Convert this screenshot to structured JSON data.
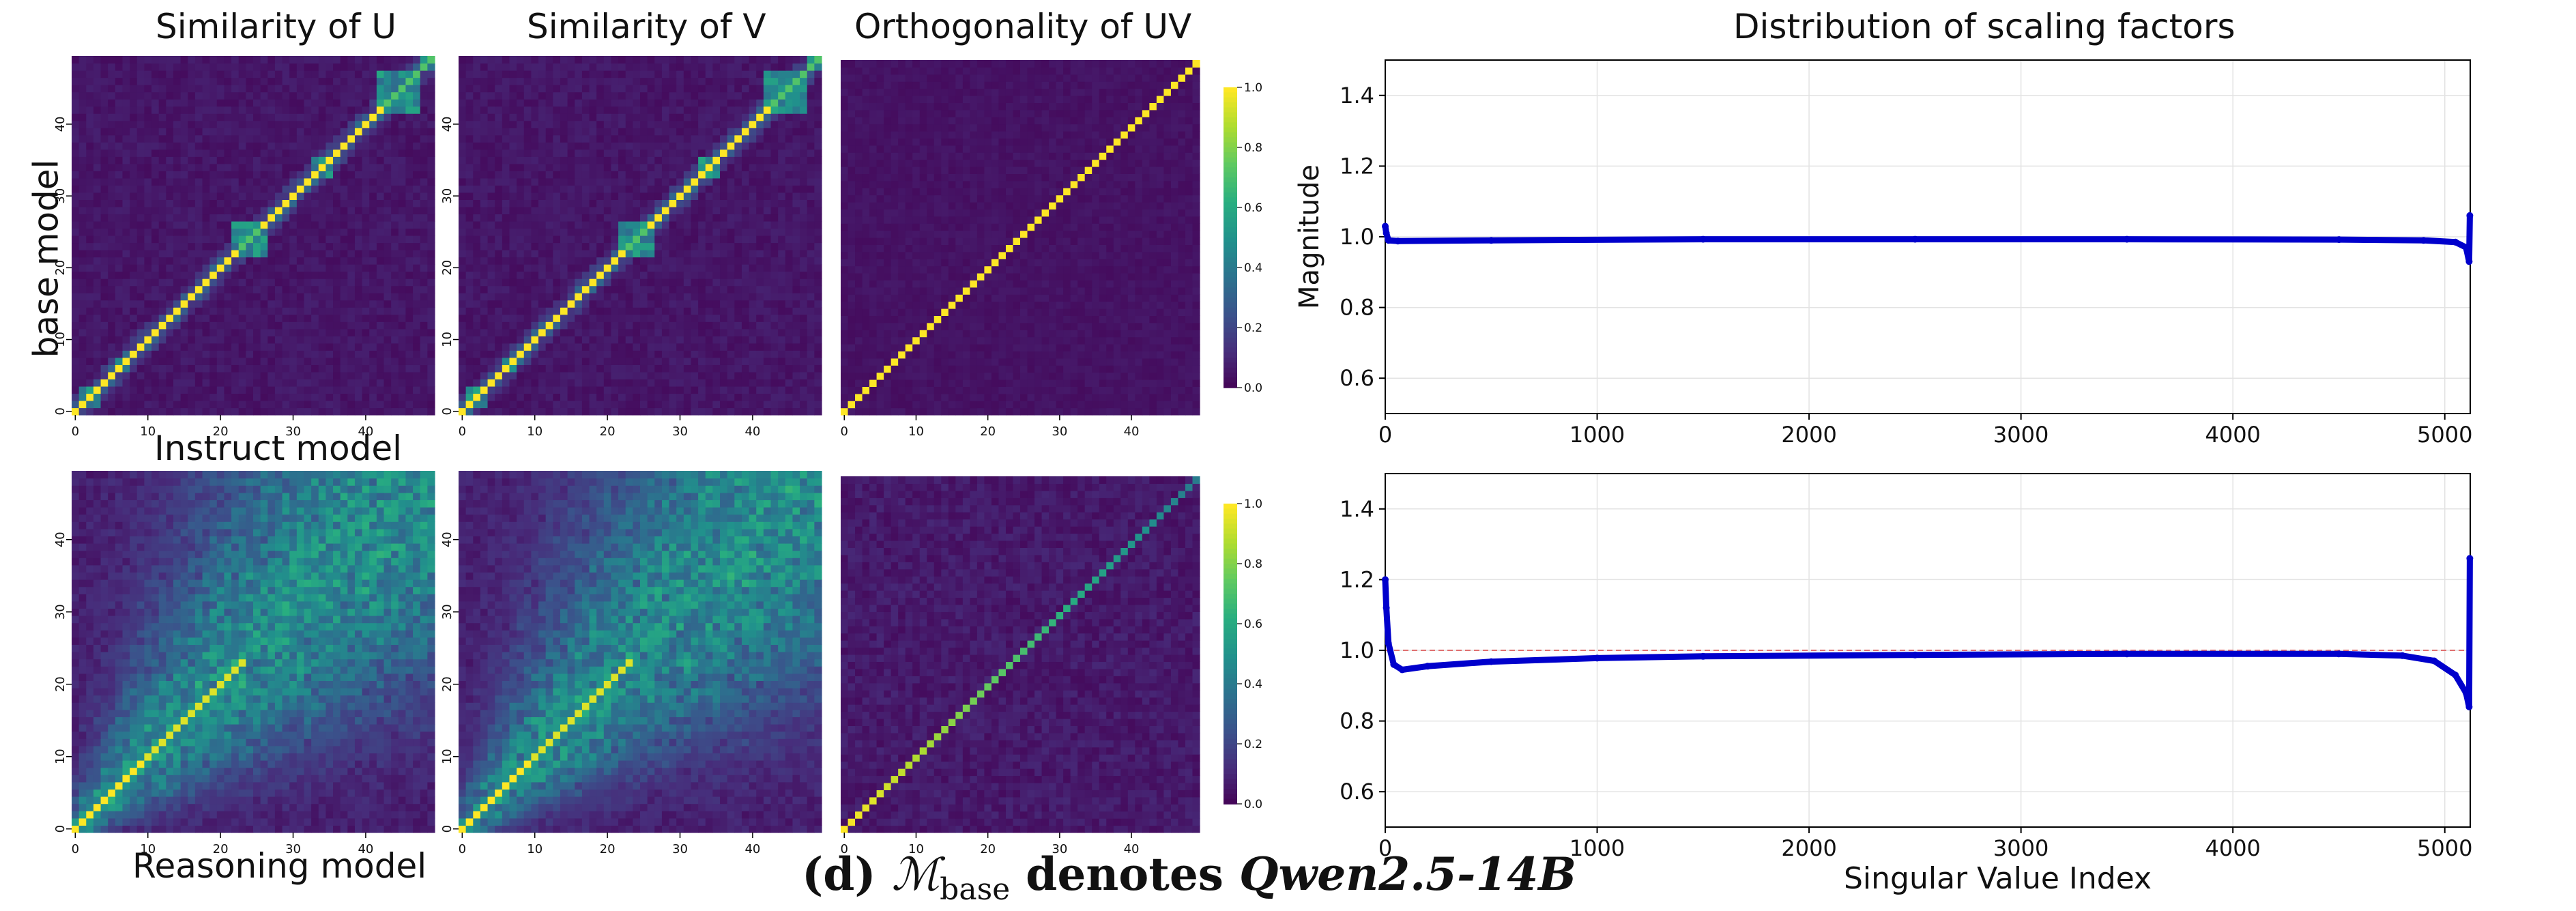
{
  "titles": {
    "sim_u": "Similarity of U",
    "sim_v": "Similarity of V",
    "orth_uv": "Orthogonality of UV",
    "scaling": "Distribution of scaling factors"
  },
  "row_labels": {
    "base": "base model",
    "instruct": "Instruct model",
    "reasoning": "Reasoning model"
  },
  "caption": {
    "prefix": "(d) ",
    "math_symbol": "ℳ",
    "math_sub": "base",
    "middle": " denotes ",
    "model": "Qwen2.5-14B"
  },
  "colorbar": {
    "ticks": [
      "0.0",
      "0.2",
      "0.4",
      "0.6",
      "0.8",
      "1.0"
    ]
  },
  "colormap": [
    "#440154",
    "#472d7b",
    "#3b528b",
    "#2c728e",
    "#21918c",
    "#28ae80",
    "#5ec962",
    "#addc30",
    "#fde725"
  ],
  "chart_data": [
    {
      "type": "heatmap",
      "panel": "top-left",
      "size": 50,
      "x_ticks": [
        "0",
        "10",
        "20",
        "30",
        "40"
      ],
      "y_ticks": [
        "0",
        "10",
        "20",
        "30",
        "40"
      ],
      "description_values": {
        "diagonal": 1.0,
        "near_diagonal_blocks": [
          [
            23,
            25,
            0.5
          ],
          [
            43,
            47,
            0.55
          ],
          [
            48,
            49,
            0.6
          ]
        ],
        "off_diagonal": 0.02
      },
      "pattern": "identity with block-structured near-diagonal similarity"
    },
    {
      "type": "heatmap",
      "panel": "top-middle",
      "size": 50,
      "x_ticks": [
        "0",
        "10",
        "20",
        "30",
        "40"
      ],
      "y_ticks": [
        "0",
        "10",
        "20",
        "30",
        "40"
      ],
      "pattern": "identity with block-structured near-diagonal similarity"
    },
    {
      "type": "heatmap",
      "panel": "top-right",
      "size": 50,
      "x_ticks": [
        "0",
        "10",
        "20",
        "30",
        "40"
      ],
      "pattern": "identity"
    },
    {
      "type": "heatmap",
      "panel": "bottom-left",
      "size": 50,
      "x_ticks": [
        "0",
        "10",
        "20",
        "30",
        "40"
      ],
      "y_ticks": [
        "0",
        "10",
        "20",
        "30",
        "40"
      ],
      "pattern": "diagonal with broad diffuse off-diagonal similarity"
    },
    {
      "type": "heatmap",
      "panel": "bottom-middle",
      "size": 50,
      "x_ticks": [
        "0",
        "10",
        "20",
        "30",
        "40"
      ],
      "y_ticks": [
        "0",
        "10",
        "20",
        "30",
        "40"
      ],
      "pattern": "diagonal with broad diffuse off-diagonal similarity"
    },
    {
      "type": "heatmap",
      "panel": "bottom-right",
      "size": 50,
      "x_ticks": [
        "0",
        "10",
        "20",
        "30",
        "40"
      ],
      "pattern": "diagonal fading from yellow (low index) to teal (high index)"
    },
    {
      "type": "line",
      "panel": "top-scaling",
      "ylabel": "Magnitude",
      "xlim": [
        0,
        5120
      ],
      "ylim": [
        0.5,
        1.5
      ],
      "x_ticks": [
        0,
        1000,
        2000,
        3000,
        4000,
        5000
      ],
      "y_ticks": [
        0.6,
        0.8,
        1.0,
        1.2,
        1.4
      ],
      "grid": true,
      "series": [
        {
          "color": "#0000cc",
          "points": [
            [
              0,
              1.03
            ],
            [
              5,
              1.01
            ],
            [
              15,
              0.99
            ],
            [
              60,
              0.988
            ],
            [
              500,
              0.99
            ],
            [
              1500,
              0.993
            ],
            [
              2500,
              0.993
            ],
            [
              3500,
              0.993
            ],
            [
              4500,
              0.992
            ],
            [
              4900,
              0.99
            ],
            [
              5050,
              0.985
            ],
            [
              5100,
              0.97
            ],
            [
              5115,
              0.93
            ],
            [
              5118,
              1.06
            ]
          ]
        }
      ]
    },
    {
      "type": "line",
      "panel": "bottom-scaling",
      "xlabel": "Singular Value Index",
      "xlim": [
        0,
        5120
      ],
      "ylim": [
        0.5,
        1.5
      ],
      "x_ticks": [
        0,
        1000,
        2000,
        3000,
        4000,
        5000
      ],
      "y_ticks": [
        0.6,
        0.8,
        1.0,
        1.2,
        1.4
      ],
      "grid": true,
      "reference_line": 1.0,
      "series": [
        {
          "color": "#0000cc",
          "points": [
            [
              0,
              1.2
            ],
            [
              5,
              1.12
            ],
            [
              15,
              1.02
            ],
            [
              40,
              0.96
            ],
            [
              80,
              0.945
            ],
            [
              200,
              0.955
            ],
            [
              500,
              0.968
            ],
            [
              1000,
              0.978
            ],
            [
              1500,
              0.983
            ],
            [
              2500,
              0.987
            ],
            [
              3500,
              0.99
            ],
            [
              4500,
              0.99
            ],
            [
              4800,
              0.985
            ],
            [
              4950,
              0.97
            ],
            [
              5050,
              0.93
            ],
            [
              5100,
              0.88
            ],
            [
              5115,
              0.84
            ],
            [
              5118,
              1.26
            ]
          ]
        }
      ]
    }
  ]
}
